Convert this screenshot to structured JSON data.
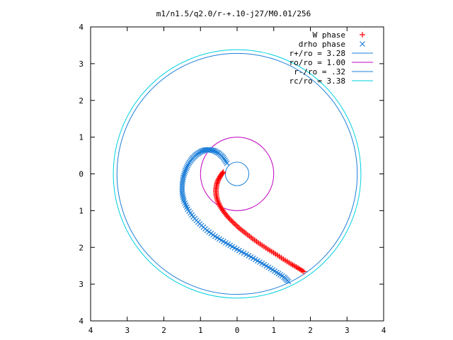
{
  "chart_data": {
    "type": "scatter",
    "title": "m1/n1.5/q2.0/r-+.10-j27/M0.01/256",
    "xlabel": "",
    "ylabel": "",
    "xlim": [
      -4,
      4
    ],
    "ylim": [
      -4,
      4
    ],
    "x_ticks": [
      -4,
      -3,
      -2,
      -1,
      0,
      1,
      2,
      3,
      4
    ],
    "y_ticks": [
      -4,
      -3,
      -2,
      -1,
      0,
      1,
      2,
      3,
      4
    ],
    "x_tick_labels": [
      "4",
      "3",
      "2",
      "1",
      "0",
      "1",
      "2",
      "3",
      "4"
    ],
    "y_tick_labels": [
      "4",
      "3",
      "2",
      "1",
      "0",
      "1",
      "2",
      "3",
      "4"
    ],
    "grid": false,
    "legend_position": "top-right",
    "series": [
      {
        "name": "W phase",
        "kind": "points",
        "marker": "+",
        "color": "#ff0000",
        "x": [
          -0.38,
          -0.45,
          -0.52,
          -0.56,
          -0.58,
          -0.57,
          -0.53,
          -0.46,
          -0.36,
          -0.24,
          -0.1,
          0.06,
          0.24,
          0.43,
          0.63,
          0.84,
          1.05,
          1.26,
          1.47,
          1.66,
          1.82
        ],
        "y": [
          0.05,
          -0.05,
          -0.17,
          -0.3,
          -0.44,
          -0.59,
          -0.74,
          -0.89,
          -1.04,
          -1.19,
          -1.33,
          -1.48,
          -1.62,
          -1.77,
          -1.91,
          -2.05,
          -2.18,
          -2.32,
          -2.45,
          -2.56,
          -2.66
        ]
      },
      {
        "name": "drho phase",
        "kind": "points",
        "marker": "x",
        "color": "#1e7fd8",
        "x": [
          -0.28,
          -0.38,
          -0.5,
          -0.63,
          -0.76,
          -0.88,
          -1.0,
          -1.12,
          -1.23,
          -1.33,
          -1.41,
          -1.47,
          -1.5,
          -1.5,
          -1.45,
          -1.35,
          -1.2,
          -1.02,
          -0.82,
          -0.6,
          -0.37,
          -0.13,
          0.12,
          0.38,
          0.62,
          0.86,
          1.08,
          1.28,
          1.4
        ],
        "y": [
          0.29,
          0.45,
          0.56,
          0.63,
          0.66,
          0.65,
          0.6,
          0.52,
          0.41,
          0.27,
          0.1,
          -0.09,
          -0.3,
          -0.52,
          -0.74,
          -0.96,
          -1.17,
          -1.36,
          -1.54,
          -1.7,
          -1.84,
          -1.98,
          -2.12,
          -2.26,
          -2.4,
          -2.54,
          -2.68,
          -2.81,
          -2.93
        ]
      },
      {
        "name": "r+/ro = 3.28",
        "kind": "circle",
        "radius": 3.28,
        "color": "#1e7fd8"
      },
      {
        "name": "ro/ro = 1.00",
        "kind": "circle",
        "radius": 1.0,
        "color": "#c000c0"
      },
      {
        "name": "r-/ro = .32",
        "kind": "circle",
        "radius": 0.32,
        "color": "#1e7fd8"
      },
      {
        "name": "rc/ro = 3.38",
        "kind": "circle",
        "radius": 3.38,
        "color": "#00d0e0"
      }
    ]
  }
}
